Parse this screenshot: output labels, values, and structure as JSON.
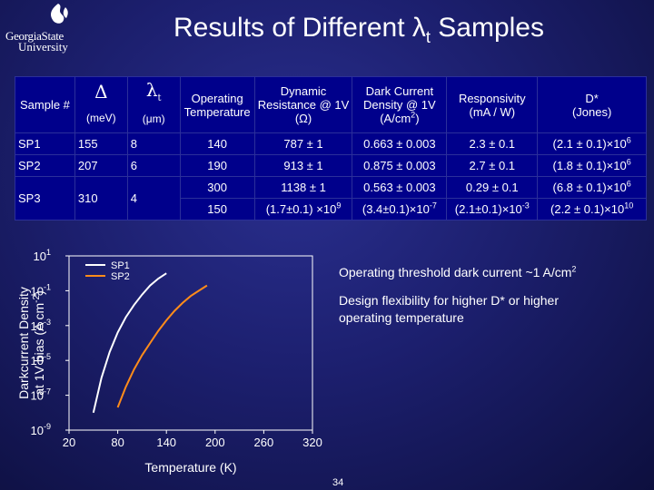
{
  "slide": {
    "title_main": "Results of Different λ",
    "title_sub": "t",
    "title_end": " Samples",
    "page_number": "34"
  },
  "logo": {
    "line1": "GeorgiaState",
    "line2": "University"
  },
  "table": {
    "headers": {
      "sample": "Sample #",
      "delta_symbol": "Δ",
      "delta_unit": "(meV)",
      "lambda_symbol": "λ",
      "lambda_sub": "t",
      "lambda_unit": "(μm)",
      "operating": "Operating Temperature",
      "dynamic": "Dynamic Resistance @ 1V (Ω)",
      "dark_current_pre": "Dark Current Density @ 1V (A/cm",
      "dark_current_sup": "2",
      "dark_current_post": ")",
      "responsivity": "Responsivity (mA / W)",
      "dstar_1": "D*",
      "dstar_2": "(Jones)"
    },
    "rows": [
      {
        "sample": "SP1",
        "delta": "155",
        "lambda": "8",
        "temp": "140",
        "resistance": "787 ± 1",
        "dark": "0.663 ± 0.003",
        "resp": "2.3 ± 0.1",
        "dstar_base": "(2.1 ± 0.1)×10",
        "dstar_exp": "6"
      },
      {
        "sample": "SP2",
        "delta": "207",
        "lambda": "6",
        "temp": "190",
        "resistance": "913 ± 1",
        "dark": "0.875 ± 0.003",
        "resp": "2.7 ± 0.1",
        "dstar_base": "(1.8 ± 0.1)×10",
        "dstar_exp": "6"
      },
      {
        "sample": "SP3",
        "delta": "310",
        "lambda": "4",
        "temp": "300",
        "resistance": "1138 ± 1",
        "dark": "0.563 ± 0.003",
        "resp": "0.29 ± 0.1",
        "dstar_base": "(6.8 ± 0.1)×10",
        "dstar_exp": "6"
      },
      {
        "temp": "150",
        "resistance_base": "(1.7±0.1) ×10",
        "resistance_exp": "9",
        "dark_base": "(3.4±0.1)×10",
        "dark_exp": "-7",
        "resp_base": "(2.1±0.1)×10",
        "resp_exp": "-3",
        "dstar_base": "(2.2 ± 0.1)×10",
        "dstar_exp": "10"
      }
    ]
  },
  "annotations": {
    "threshold_pre": "Operating threshold dark current ~1 A/cm",
    "threshold_sup": "2",
    "flexibility": "Design flexibility for higher D* or higher operating temperature"
  },
  "colors": {
    "background": "#1c1f6e",
    "table_fill": "#00008b",
    "sp1_line": "#ffffff",
    "sp2_line": "#ff8c1a"
  },
  "chart_data": {
    "type": "line",
    "title": "",
    "xlabel": "Temperature (K)",
    "ylabel_line1": "Darkcurrent Density",
    "ylabel_line2": "at 1V bias (A cm",
    "ylabel_sup": "-2",
    "ylabel_end": ")",
    "y_scale": "log",
    "xlim": [
      20,
      320
    ],
    "ylim": [
      1e-09,
      10
    ],
    "x_ticks": [
      "20",
      "80",
      "140",
      "200",
      "260",
      "320"
    ],
    "y_ticks": [
      {
        "base": "10",
        "exp": "1"
      },
      {
        "base": "10",
        "exp": "-1"
      },
      {
        "base": "10",
        "exp": "-3"
      },
      {
        "base": "10",
        "exp": "-5"
      },
      {
        "base": "10",
        "exp": "-7"
      },
      {
        "base": "10",
        "exp": "-9"
      }
    ],
    "legend_position": "top-left",
    "series": [
      {
        "name": "SP1",
        "color": "#ffffff",
        "x": [
          50,
          60,
          70,
          80,
          90,
          100,
          110,
          120,
          130,
          140
        ],
        "y": [
          1e-08,
          1e-06,
          3e-05,
          0.0004,
          0.003,
          0.015,
          0.06,
          0.2,
          0.5,
          1.0
        ]
      },
      {
        "name": "SP2",
        "color": "#ff8c1a",
        "x": [
          80,
          90,
          100,
          110,
          120,
          130,
          140,
          150,
          160,
          170,
          180,
          190
        ],
        "y": [
          2e-08,
          3e-07,
          3e-06,
          2e-05,
          0.0001,
          0.0005,
          0.002,
          0.007,
          0.02,
          0.05,
          0.1,
          0.2
        ]
      }
    ]
  }
}
